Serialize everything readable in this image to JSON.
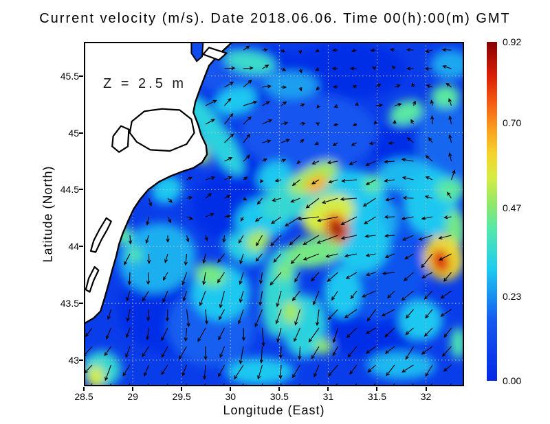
{
  "title": "Current velocity (m/s). Date 2018.06.06. Time 00(h):00(m) GMT",
  "colors": {
    "background": "#ffffff",
    "text": "#000000",
    "grid": "#c6c6c6",
    "arrow": "#000000",
    "land_fill": "#ffffff",
    "coast_stroke": "#000000"
  },
  "chart_data": {
    "type": "vector-field-heatmap-map",
    "title": "Current velocity (m/s). Date 2018.06.06. Time 00(h):00(m) GMT",
    "annotation": "Z = 2.5 m",
    "units": "m/s",
    "xlabel": "Longitude (East)",
    "ylabel": "Latitude (North)",
    "xlim": [
      28.5,
      32.39
    ],
    "ylim": [
      42.77,
      45.8
    ],
    "grid": true,
    "x_ticks": {
      "values": [
        28.5,
        29,
        29.5,
        30,
        30.5,
        31,
        31.5,
        32
      ],
      "labels": [
        "28.5",
        "29",
        "29.5",
        "30",
        "30.5",
        "31",
        "31.5",
        "32"
      ]
    },
    "y_ticks": {
      "values": [
        45.5,
        45,
        44.5,
        44,
        43.5,
        43
      ],
      "labels": [
        "45.5",
        "45",
        "44.5",
        "44",
        "43.5",
        "43"
      ]
    },
    "colorbar": {
      "min": 0.0,
      "max": 0.92,
      "tick_values": [
        0.0,
        0.23,
        0.47,
        0.7,
        0.92
      ],
      "tick_labels": [
        "0.00",
        "0.23",
        "0.47",
        "0.70",
        "0.92"
      ],
      "colormap_stops": [
        {
          "t": 0.0,
          "rgb": [
            3,
            40,
            230
          ]
        },
        {
          "t": 0.18,
          "rgb": [
            20,
            90,
            240
          ]
        },
        {
          "t": 0.33,
          "rgb": [
            30,
            203,
            240
          ]
        },
        {
          "t": 0.45,
          "rgb": [
            85,
            232,
            168
          ]
        },
        {
          "t": 0.52,
          "rgb": [
            143,
            232,
            106
          ]
        },
        {
          "t": 0.6,
          "rgb": [
            214,
            236,
            67
          ]
        },
        {
          "t": 0.67,
          "rgb": [
            245,
            211,
            44
          ]
        },
        {
          "t": 0.74,
          "rgb": [
            249,
            160,
            31
          ]
        },
        {
          "t": 0.82,
          "rgb": [
            245,
            92,
            20
          ]
        },
        {
          "t": 0.9,
          "rgb": [
            217,
            30,
            6
          ]
        },
        {
          "t": 1.0,
          "rgb": [
            135,
            0,
            0
          ]
        }
      ]
    },
    "field_base_value": 0.07,
    "land": {
      "outline": [
        [
          28.5,
          45.8
        ],
        [
          30.02,
          45.8
        ],
        [
          29.87,
          45.68
        ],
        [
          29.78,
          45.59
        ],
        [
          29.73,
          45.48
        ],
        [
          29.69,
          45.39
        ],
        [
          29.64,
          45.27
        ],
        [
          29.62,
          45.18
        ],
        [
          29.67,
          45.07
        ],
        [
          29.7,
          44.98
        ],
        [
          29.75,
          44.89
        ],
        [
          29.76,
          44.81
        ],
        [
          29.71,
          44.74
        ],
        [
          29.62,
          44.69
        ],
        [
          29.51,
          44.66
        ],
        [
          29.39,
          44.62
        ],
        [
          29.27,
          44.57
        ],
        [
          29.16,
          44.5
        ],
        [
          29.08,
          44.42
        ],
        [
          29.01,
          44.33
        ],
        [
          28.95,
          44.22
        ],
        [
          28.9,
          44.12
        ],
        [
          28.86,
          44.02
        ],
        [
          28.83,
          43.91
        ],
        [
          28.79,
          43.79
        ],
        [
          28.75,
          43.66
        ],
        [
          28.71,
          43.54
        ],
        [
          28.67,
          43.43
        ],
        [
          28.6,
          43.37
        ],
        [
          28.5,
          43.32
        ]
      ],
      "inlet": [
        [
          29.6,
          45.8
        ],
        [
          29.72,
          45.8
        ],
        [
          29.71,
          45.67
        ],
        [
          29.655,
          45.63
        ],
        [
          29.6,
          45.7
        ]
      ],
      "inlet_value": 0.12,
      "lagoons": [
        [
          [
            28.99,
            45.1
          ],
          [
            29.12,
            45.19
          ],
          [
            29.3,
            45.21
          ],
          [
            29.48,
            45.2
          ],
          [
            29.6,
            45.12
          ],
          [
            29.63,
            45.0
          ],
          [
            29.55,
            44.9
          ],
          [
            29.38,
            44.84
          ],
          [
            29.18,
            44.85
          ],
          [
            29.04,
            44.92
          ],
          [
            28.97,
            45.0
          ]
        ],
        [
          [
            28.8,
            44.97
          ],
          [
            28.88,
            45.06
          ],
          [
            28.96,
            45.03
          ],
          [
            28.95,
            44.88
          ],
          [
            28.86,
            44.83
          ],
          [
            28.79,
            44.88
          ]
        ],
        [
          [
            28.62,
            43.95
          ],
          [
            28.68,
            44.06
          ],
          [
            28.74,
            44.15
          ],
          [
            28.78,
            44.22
          ],
          [
            28.73,
            44.25
          ],
          [
            28.66,
            44.15
          ],
          [
            28.6,
            44.05
          ],
          [
            28.57,
            43.96
          ]
        ],
        [
          [
            28.56,
            43.6
          ],
          [
            28.6,
            43.7
          ],
          [
            28.65,
            43.79
          ],
          [
            28.61,
            43.82
          ],
          [
            28.55,
            43.72
          ],
          [
            28.52,
            43.62
          ]
        ],
        [
          [
            29.78,
            45.75
          ],
          [
            29.96,
            45.7
          ],
          [
            29.88,
            45.64
          ],
          [
            29.72,
            45.69
          ]
        ]
      ]
    },
    "speed_blobs": [
      [
        30.2,
        45.45,
        0.02,
        0.75,
        0.3,
        0
      ],
      [
        31.2,
        45.55,
        0.02,
        0.6,
        0.25,
        0
      ],
      [
        30.35,
        44.75,
        0.02,
        0.5,
        0.35,
        0
      ],
      [
        29.45,
        43.45,
        0.02,
        0.6,
        0.4,
        0
      ],
      [
        31.45,
        43.5,
        0.02,
        0.55,
        0.5,
        0
      ],
      [
        31.9,
        44.85,
        0.02,
        0.45,
        0.3,
        0
      ],
      [
        30.0,
        44.35,
        0.02,
        0.4,
        0.3,
        0
      ],
      [
        30.8,
        45.0,
        0.15,
        0.7,
        0.35,
        0
      ],
      [
        31.5,
        43.8,
        0.14,
        0.5,
        0.45,
        0
      ],
      [
        29.8,
        43.3,
        0.17,
        0.45,
        0.35,
        0
      ],
      [
        32.2,
        44.9,
        0.18,
        0.3,
        0.4,
        0
      ],
      [
        30.0,
        45.55,
        0.15,
        0.5,
        0.2,
        0
      ],
      [
        29.83,
        44.98,
        0.33,
        0.14,
        0.42,
        -35
      ],
      [
        29.68,
        44.83,
        0.52,
        0.07,
        0.12,
        -35
      ],
      [
        30.05,
        45.28,
        0.3,
        0.22,
        0.12,
        -20
      ],
      [
        30.2,
        45.62,
        0.36,
        0.26,
        0.1,
        10
      ],
      [
        30.62,
        45.42,
        0.25,
        0.28,
        0.12,
        0
      ],
      [
        29.35,
        44.5,
        0.3,
        0.16,
        0.12,
        -30
      ],
      [
        28.9,
        44.1,
        0.42,
        0.09,
        0.08,
        0
      ],
      [
        29.02,
        43.93,
        0.4,
        0.08,
        0.07,
        0
      ],
      [
        29.25,
        43.9,
        0.27,
        0.4,
        0.3,
        -20
      ],
      [
        28.62,
        42.85,
        0.55,
        0.09,
        0.1,
        0
      ],
      [
        28.68,
        42.92,
        0.35,
        0.2,
        0.16,
        0
      ],
      [
        29.8,
        43.75,
        0.45,
        0.16,
        0.1,
        20
      ],
      [
        29.9,
        43.6,
        0.3,
        0.3,
        0.25,
        0
      ],
      [
        30.28,
        44.05,
        0.5,
        0.13,
        0.09,
        -30
      ],
      [
        30.35,
        44.25,
        0.3,
        0.3,
        0.18,
        -15
      ],
      [
        30.15,
        43.98,
        0.32,
        0.22,
        0.13,
        20
      ],
      [
        30.5,
        43.6,
        0.35,
        0.18,
        0.4,
        5
      ],
      [
        30.75,
        43.3,
        0.33,
        0.22,
        0.28,
        0
      ],
      [
        30.62,
        43.42,
        0.5,
        0.09,
        0.1,
        0
      ],
      [
        30.95,
        43.12,
        0.48,
        0.09,
        0.07,
        0
      ],
      [
        30.55,
        43.78,
        0.46,
        0.09,
        0.08,
        0
      ],
      [
        31.15,
        43.6,
        0.3,
        0.18,
        0.22,
        0
      ],
      [
        30.3,
        42.9,
        0.3,
        0.35,
        0.12,
        0
      ],
      [
        31.75,
        42.95,
        0.28,
        0.35,
        0.12,
        0
      ],
      [
        32.33,
        43.15,
        0.4,
        0.08,
        0.14,
        0
      ],
      [
        31.95,
        43.35,
        0.3,
        0.22,
        0.18,
        0
      ],
      [
        31.1,
        44.42,
        0.3,
        0.5,
        0.25,
        -10
      ],
      [
        31.0,
        44.28,
        0.55,
        0.28,
        0.16,
        -25
      ],
      [
        31.09,
        44.16,
        0.75,
        0.12,
        0.14,
        -25
      ],
      [
        31.09,
        44.15,
        0.92,
        0.06,
        0.09,
        -25
      ],
      [
        30.88,
        44.55,
        0.66,
        0.12,
        0.07,
        -30
      ],
      [
        30.85,
        44.6,
        0.5,
        0.28,
        0.11,
        -30
      ],
      [
        30.7,
        44.45,
        0.35,
        0.42,
        0.18,
        -25
      ],
      [
        30.85,
        43.95,
        0.45,
        0.3,
        0.13,
        -10
      ],
      [
        31.35,
        44.05,
        0.3,
        0.28,
        0.28,
        0
      ],
      [
        32.15,
        43.87,
        0.82,
        0.09,
        0.11,
        -20
      ],
      [
        32.18,
        43.9,
        0.6,
        0.2,
        0.2,
        -20
      ],
      [
        32.3,
        44.15,
        0.45,
        0.1,
        0.18,
        0
      ],
      [
        32.25,
        44.5,
        0.42,
        0.15,
        0.1,
        0
      ],
      [
        32.05,
        44.38,
        0.3,
        0.28,
        0.3,
        0
      ],
      [
        31.8,
        44.62,
        0.28,
        0.3,
        0.15,
        0
      ],
      [
        31.45,
        44.55,
        0.42,
        0.1,
        0.08,
        0
      ],
      [
        32.2,
        45.32,
        0.42,
        0.15,
        0.1,
        0
      ],
      [
        31.8,
        45.18,
        0.42,
        0.18,
        0.1,
        -20
      ],
      [
        32.25,
        45.6,
        0.26,
        0.2,
        0.13,
        0
      ],
      [
        31.55,
        44.25,
        0.26,
        0.18,
        0.18,
        0
      ],
      [
        30.45,
        44.62,
        0.3,
        0.18,
        0.12,
        -30
      ]
    ],
    "flow_features": [
      [
        29.95,
        45.55,
        15,
        0.35
      ],
      [
        30.6,
        45.5,
        260,
        0.12
      ],
      [
        31.2,
        45.55,
        185,
        0.2
      ],
      [
        32.1,
        45.6,
        185,
        0.3
      ],
      [
        32.2,
        45.0,
        70,
        0.35
      ],
      [
        29.9,
        44.95,
        42,
        0.5
      ],
      [
        30.12,
        45.22,
        35,
        0.4
      ],
      [
        30.5,
        44.95,
        25,
        0.28
      ],
      [
        31.6,
        45.3,
        10,
        0.35
      ],
      [
        31.05,
        44.2,
        195,
        0.85
      ],
      [
        30.6,
        44.2,
        195,
        0.5
      ],
      [
        31.3,
        44.45,
        200,
        0.45
      ],
      [
        29.8,
        44.35,
        40,
        0.45
      ],
      [
        29.0,
        44.3,
        265,
        0.35
      ],
      [
        28.8,
        43.6,
        250,
        0.35
      ],
      [
        29.6,
        43.5,
        265,
        0.4
      ],
      [
        29.9,
        43.8,
        245,
        0.5
      ],
      [
        30.3,
        43.4,
        272,
        0.55
      ],
      [
        30.8,
        43.3,
        260,
        0.5
      ],
      [
        30.6,
        43.9,
        250,
        0.45
      ],
      [
        31.4,
        43.2,
        210,
        0.3
      ],
      [
        31.9,
        43.1,
        230,
        0.35
      ],
      [
        32.1,
        43.9,
        225,
        0.6
      ],
      [
        32.3,
        44.6,
        60,
        0.4
      ],
      [
        31.7,
        44.0,
        160,
        0.3
      ],
      [
        31.9,
        44.7,
        185,
        0.4
      ],
      [
        28.7,
        42.9,
        240,
        0.4
      ],
      [
        29.4,
        45.0,
        50,
        0.3
      ]
    ]
  }
}
